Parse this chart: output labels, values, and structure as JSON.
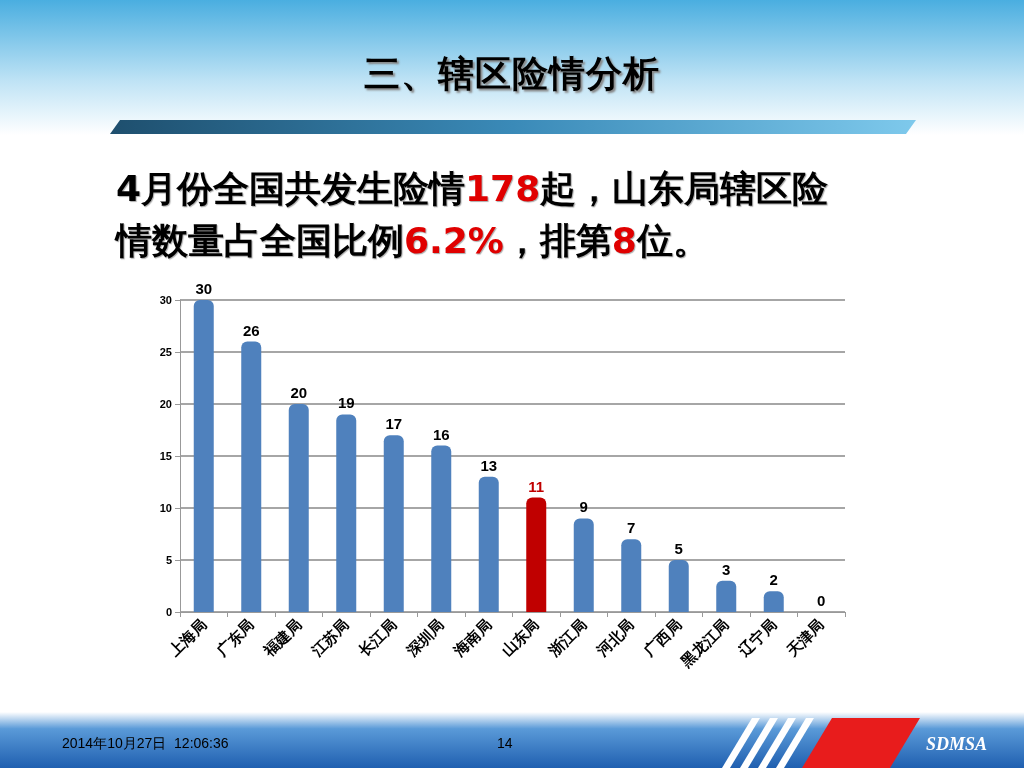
{
  "chart_data": {
    "type": "bar",
    "title": "三、辖区险情分析",
    "subtitle": "4月份全国共发生险情178起，山东局辖区险情数量占全国比例6.2%，排第8位。",
    "categories": [
      "上海局",
      "广东局",
      "福建局",
      "江苏局",
      "长江局",
      "深圳局",
      "海南局",
      "山东局",
      "浙江局",
      "河北局",
      "广西局",
      "黑龙江局",
      "辽宁局",
      "天津局"
    ],
    "values": [
      30,
      26,
      20,
      19,
      17,
      16,
      13,
      11,
      9,
      7,
      5,
      3,
      2,
      0
    ],
    "colors": [
      "#4f81bd",
      "#4f81bd",
      "#4f81bd",
      "#4f81bd",
      "#4f81bd",
      "#4f81bd",
      "#4f81bd",
      "#c00000",
      "#4f81bd",
      "#4f81bd",
      "#4f81bd",
      "#4f81bd",
      "#4f81bd",
      "#4f81bd"
    ],
    "ylim": [
      0,
      30
    ],
    "yticks": [
      0,
      5,
      10,
      15,
      20,
      25,
      30
    ],
    "grid": "y",
    "data_labels": true,
    "annotations": [
      "2014年10月27日  12:06:36",
      "14",
      "SDMSA"
    ]
  }
}
